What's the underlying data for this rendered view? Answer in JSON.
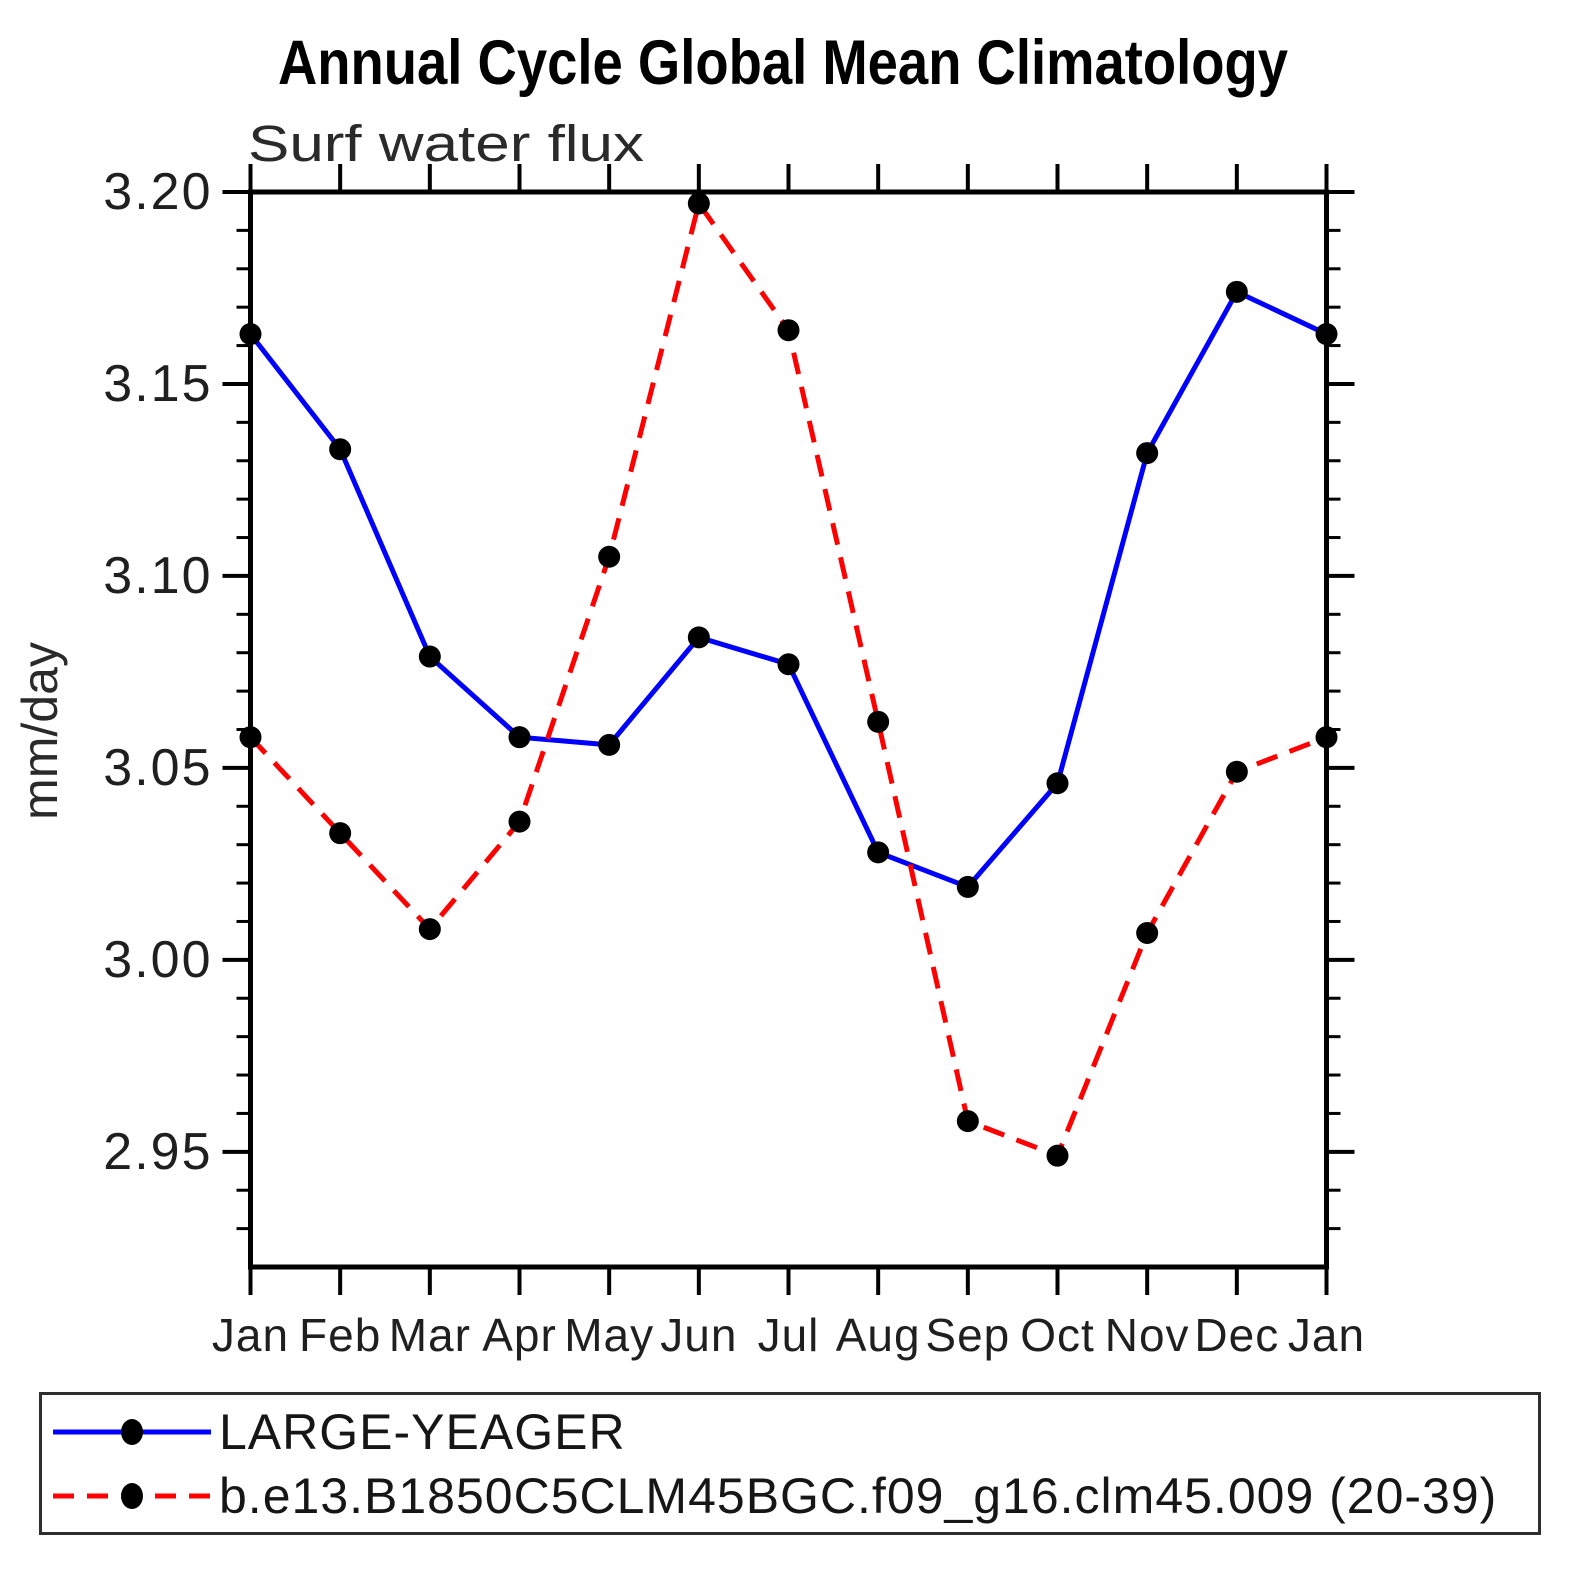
{
  "page": {
    "background": "#ffffff"
  },
  "chart_data": {
    "type": "line",
    "title": "Annual Cycle Global Mean Climatology",
    "subtitle": "Surf water flux",
    "ylabel": "mm/day",
    "xlabel": "",
    "categories": [
      "Jan",
      "Feb",
      "Mar",
      "Apr",
      "May",
      "Jun",
      "Jul",
      "Aug",
      "Sep",
      "Oct",
      "Nov",
      "Dec",
      "Jan"
    ],
    "yticks": [
      3.2,
      3.15,
      3.1,
      3.05,
      3.0,
      2.95
    ],
    "ytick_labels": [
      "3.20",
      "3.15",
      "3.10",
      "3.05",
      "3.00",
      "2.95"
    ],
    "minor_tick_step": 0.01,
    "ylim": [
      2.92,
      3.2
    ],
    "grid": false,
    "legend_position": "bottom",
    "axis_color": "#000000",
    "series": [
      {
        "name": "LARGE-YEAGER",
        "color": "#0000ff",
        "line_style": "solid",
        "marker": "circle",
        "marker_color": "#000000",
        "values": [
          3.163,
          3.133,
          3.079,
          3.058,
          3.056,
          3.084,
          3.077,
          3.028,
          3.019,
          3.046,
          3.132,
          3.174,
          3.163
        ]
      },
      {
        "name": "b.e13.B1850C5CLM45BGC.f09_g16.clm45.009 (20-39)",
        "color": "#ff0000",
        "line_style": "dashed",
        "marker": "circle",
        "marker_color": "#000000",
        "values": [
          3.058,
          3.033,
          3.008,
          3.036,
          3.105,
          3.197,
          3.164,
          3.062,
          2.958,
          2.949,
          3.007,
          3.049,
          3.058
        ]
      }
    ]
  }
}
